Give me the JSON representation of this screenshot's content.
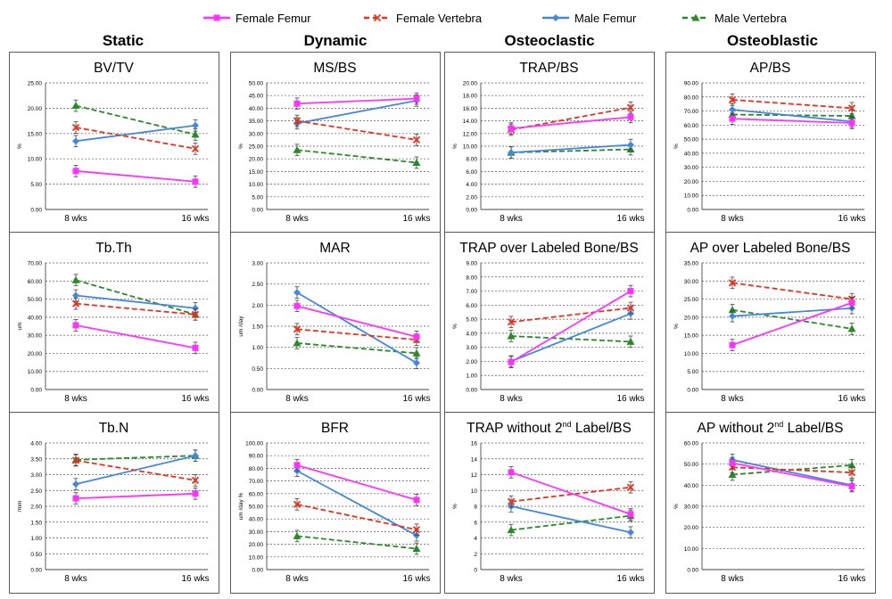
{
  "legend": [
    {
      "name": "Female Femur",
      "color": "#ff33ff",
      "dash": "solid",
      "marker": "square"
    },
    {
      "name": "Female Vertebra",
      "color": "#e8321e",
      "dash": "dashed",
      "marker": "x"
    },
    {
      "name": "Male Femur",
      "color": "#4488dd",
      "dash": "solid",
      "marker": "diamond"
    },
    {
      "name": "Male Vertebra",
      "color": "#2a8a2a",
      "dash": "dashed",
      "marker": "triangle"
    }
  ],
  "columns": [
    "Static",
    "Dynamic",
    "Osteoclastic",
    "Osteoblastic"
  ],
  "chart_data": [
    {
      "type": "line",
      "title": "BV/TV",
      "ylabel": "%",
      "categories": [
        "8 wks",
        "16 wks"
      ],
      "ylim": [
        0,
        25
      ],
      "yticks": [
        0,
        5,
        10,
        15,
        20,
        25
      ],
      "tick_decimals": 2,
      "series": [
        {
          "name": "Female Femur",
          "values": [
            7.6,
            5.5
          ]
        },
        {
          "name": "Female Vertebra",
          "values": [
            16.2,
            12.0
          ]
        },
        {
          "name": "Male Femur",
          "values": [
            13.5,
            16.6
          ]
        },
        {
          "name": "Male Vertebra",
          "values": [
            20.5,
            14.8
          ]
        }
      ]
    },
    {
      "type": "line",
      "title": "MS/BS",
      "ylabel": "%",
      "categories": [
        "8 wks",
        "16 wks"
      ],
      "ylim": [
        0,
        50
      ],
      "yticks": [
        0,
        5,
        10,
        15,
        20,
        25,
        30,
        35,
        40,
        45,
        50
      ],
      "tick_decimals": 2,
      "series": [
        {
          "name": "Female Femur",
          "values": [
            41.8,
            43.8
          ]
        },
        {
          "name": "Female Vertebra",
          "values": [
            35.0,
            27.5
          ]
        },
        {
          "name": "Male Femur",
          "values": [
            34.0,
            43.0
          ]
        },
        {
          "name": "Male Vertebra",
          "values": [
            23.5,
            18.5
          ]
        }
      ]
    },
    {
      "type": "line",
      "title": "TRAP/BS",
      "ylabel": "%",
      "categories": [
        "8 wks",
        "16 wks"
      ],
      "ylim": [
        0,
        20
      ],
      "yticks": [
        0,
        2,
        4,
        6,
        8,
        10,
        12,
        14,
        16,
        18,
        20
      ],
      "tick_decimals": 2,
      "series": [
        {
          "name": "Female Femur",
          "values": [
            12.8,
            14.6
          ]
        },
        {
          "name": "Female Vertebra",
          "values": [
            12.6,
            16.1
          ]
        },
        {
          "name": "Male Femur",
          "values": [
            9.0,
            10.2
          ]
        },
        {
          "name": "Male Vertebra",
          "values": [
            9.0,
            9.5
          ]
        }
      ]
    },
    {
      "type": "line",
      "title": "AP/BS",
      "ylabel": "%",
      "categories": [
        "8 wks",
        "16 wks"
      ],
      "ylim": [
        0,
        90
      ],
      "yticks": [
        0,
        10,
        20,
        30,
        40,
        50,
        60,
        70,
        80,
        90
      ],
      "tick_decimals": 2,
      "series": [
        {
          "name": "Female Femur",
          "values": [
            64.5,
            61.5
          ]
        },
        {
          "name": "Female Vertebra",
          "values": [
            78.0,
            72.0
          ]
        },
        {
          "name": "Male Femur",
          "values": [
            71.0,
            62.5
          ]
        },
        {
          "name": "Male Vertebra",
          "values": [
            67.5,
            66.5
          ]
        }
      ]
    },
    {
      "type": "line",
      "title": "Tb.Th",
      "ylabel": "um",
      "categories": [
        "8 wks",
        "16 wks"
      ],
      "ylim": [
        0,
        70
      ],
      "yticks": [
        0,
        10,
        20,
        30,
        40,
        50,
        60,
        70
      ],
      "tick_decimals": 2,
      "series": [
        {
          "name": "Female Femur",
          "values": [
            35.5,
            23.0
          ]
        },
        {
          "name": "Female Vertebra",
          "values": [
            47.5,
            41.5
          ]
        },
        {
          "name": "Male Femur",
          "values": [
            52.0,
            45.0
          ]
        },
        {
          "name": "Male Vertebra",
          "values": [
            60.5,
            41.5
          ]
        }
      ]
    },
    {
      "type": "line",
      "title": "MAR",
      "ylabel": "um /day",
      "categories": [
        "8 wks",
        "16 wks"
      ],
      "ylim": [
        0,
        3
      ],
      "yticks": [
        0,
        0.5,
        1,
        1.5,
        2,
        2.5,
        3
      ],
      "tick_decimals": 2,
      "series": [
        {
          "name": "Female Femur",
          "values": [
            1.98,
            1.25
          ]
        },
        {
          "name": "Female Vertebra",
          "values": [
            1.43,
            1.18
          ]
        },
        {
          "name": "Male Femur",
          "values": [
            2.3,
            0.63
          ]
        },
        {
          "name": "Male Vertebra",
          "values": [
            1.1,
            0.86
          ]
        }
      ]
    },
    {
      "type": "line",
      "title": "TRAP over Labeled Bone/BS",
      "ylabel": "%",
      "categories": [
        "8 wks",
        "16 wks"
      ],
      "ylim": [
        0,
        9
      ],
      "yticks": [
        0,
        1,
        2,
        3,
        4,
        5,
        6,
        7,
        8,
        9
      ],
      "tick_decimals": 2,
      "series": [
        {
          "name": "Female Femur",
          "values": [
            1.95,
            7.0
          ]
        },
        {
          "name": "Female Vertebra",
          "values": [
            4.8,
            5.8
          ]
        },
        {
          "name": "Male Femur",
          "values": [
            2.0,
            5.4
          ]
        },
        {
          "name": "Male Vertebra",
          "values": [
            3.8,
            3.4
          ]
        }
      ]
    },
    {
      "type": "line",
      "title": "AP over Labeled Bone/BS",
      "ylabel": "%",
      "categories": [
        "8 wks",
        "16 wks"
      ],
      "ylim": [
        0,
        35
      ],
      "yticks": [
        0,
        5,
        10,
        15,
        20,
        25,
        30,
        35
      ],
      "tick_decimals": 2,
      "series": [
        {
          "name": "Female Femur",
          "values": [
            12.3,
            24.0
          ]
        },
        {
          "name": "Female Vertebra",
          "values": [
            29.5,
            25.0
          ]
        },
        {
          "name": "Male Femur",
          "values": [
            20.3,
            22.5
          ]
        },
        {
          "name": "Male Vertebra",
          "values": [
            22.0,
            16.8
          ]
        }
      ]
    },
    {
      "type": "line",
      "title": "Tb.N",
      "ylabel": "/mm",
      "categories": [
        "8 wks",
        "16 wks"
      ],
      "ylim": [
        0,
        4
      ],
      "yticks": [
        0,
        0.5,
        1,
        1.5,
        2,
        2.5,
        3,
        3.5,
        4
      ],
      "tick_decimals": 2,
      "series": [
        {
          "name": "Female Femur",
          "values": [
            2.25,
            2.4
          ]
        },
        {
          "name": "Female Vertebra",
          "values": [
            3.45,
            2.82
          ]
        },
        {
          "name": "Male Femur",
          "values": [
            2.7,
            3.6
          ]
        },
        {
          "name": "Male Vertebra",
          "values": [
            3.47,
            3.6
          ]
        }
      ]
    },
    {
      "type": "line",
      "title": "BFR",
      "ylabel": "um /day %",
      "categories": [
        "8 wks",
        "16 wks"
      ],
      "ylim": [
        0,
        100
      ],
      "yticks": [
        0,
        10,
        20,
        30,
        40,
        50,
        60,
        70,
        80,
        90,
        100
      ],
      "tick_decimals": 2,
      "series": [
        {
          "name": "Female Femur",
          "values": [
            82.5,
            55.0
          ]
        },
        {
          "name": "Female Vertebra",
          "values": [
            51.5,
            31.5
          ]
        },
        {
          "name": "Male Femur",
          "values": [
            78.0,
            27.0
          ]
        },
        {
          "name": "Male Vertebra",
          "values": [
            26.5,
            16.5
          ]
        }
      ]
    },
    {
      "type": "line",
      "title": "TRAP without 2nd Label/BS",
      "title_main": "TRAP without 2",
      "title_sup": "nd",
      "title_rest": " Label/BS",
      "ylabel": "%",
      "categories": [
        "8 wks",
        "16 wks"
      ],
      "ylim": [
        0,
        16
      ],
      "yticks": [
        0,
        2,
        4,
        6,
        8,
        10,
        12,
        14,
        16
      ],
      "tick_decimals": 0,
      "series": [
        {
          "name": "Female Femur",
          "values": [
            12.3,
            7.0
          ]
        },
        {
          "name": "Female Vertebra",
          "values": [
            8.6,
            10.4
          ]
        },
        {
          "name": "Male Femur",
          "values": [
            8.0,
            4.7
          ]
        },
        {
          "name": "Male Vertebra",
          "values": [
            5.0,
            6.8
          ]
        }
      ]
    },
    {
      "type": "line",
      "title": "AP without 2nd Label/BS",
      "title_main": "AP without 2",
      "title_sup": "nd",
      "title_rest": " Label/BS",
      "ylabel": "%",
      "categories": [
        "8 wks",
        "16 wks"
      ],
      "ylim": [
        0,
        60
      ],
      "yticks": [
        0,
        10,
        20,
        30,
        40,
        50,
        60
      ],
      "tick_decimals": 2,
      "series": [
        {
          "name": "Female Femur",
          "values": [
            50.5,
            39.5
          ]
        },
        {
          "name": "Female Vertebra",
          "values": [
            48.5,
            46.0
          ]
        },
        {
          "name": "Male Femur",
          "values": [
            52.0,
            40.0
          ]
        },
        {
          "name": "Male Vertebra",
          "values": [
            45.0,
            49.5
          ]
        }
      ]
    }
  ]
}
